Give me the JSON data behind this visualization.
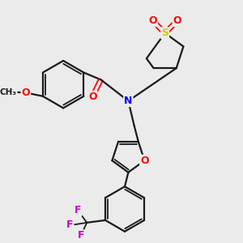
{
  "background_color": "#ebebeb",
  "bond_color": "#1a1a1a",
  "atom_colors": {
    "O": "#ff0000",
    "N": "#0000ff",
    "S": "#cccc00",
    "F": "#cc00cc",
    "C": "#1a1a1a"
  },
  "figsize": [
    3.0,
    3.0
  ],
  "dpi": 100
}
